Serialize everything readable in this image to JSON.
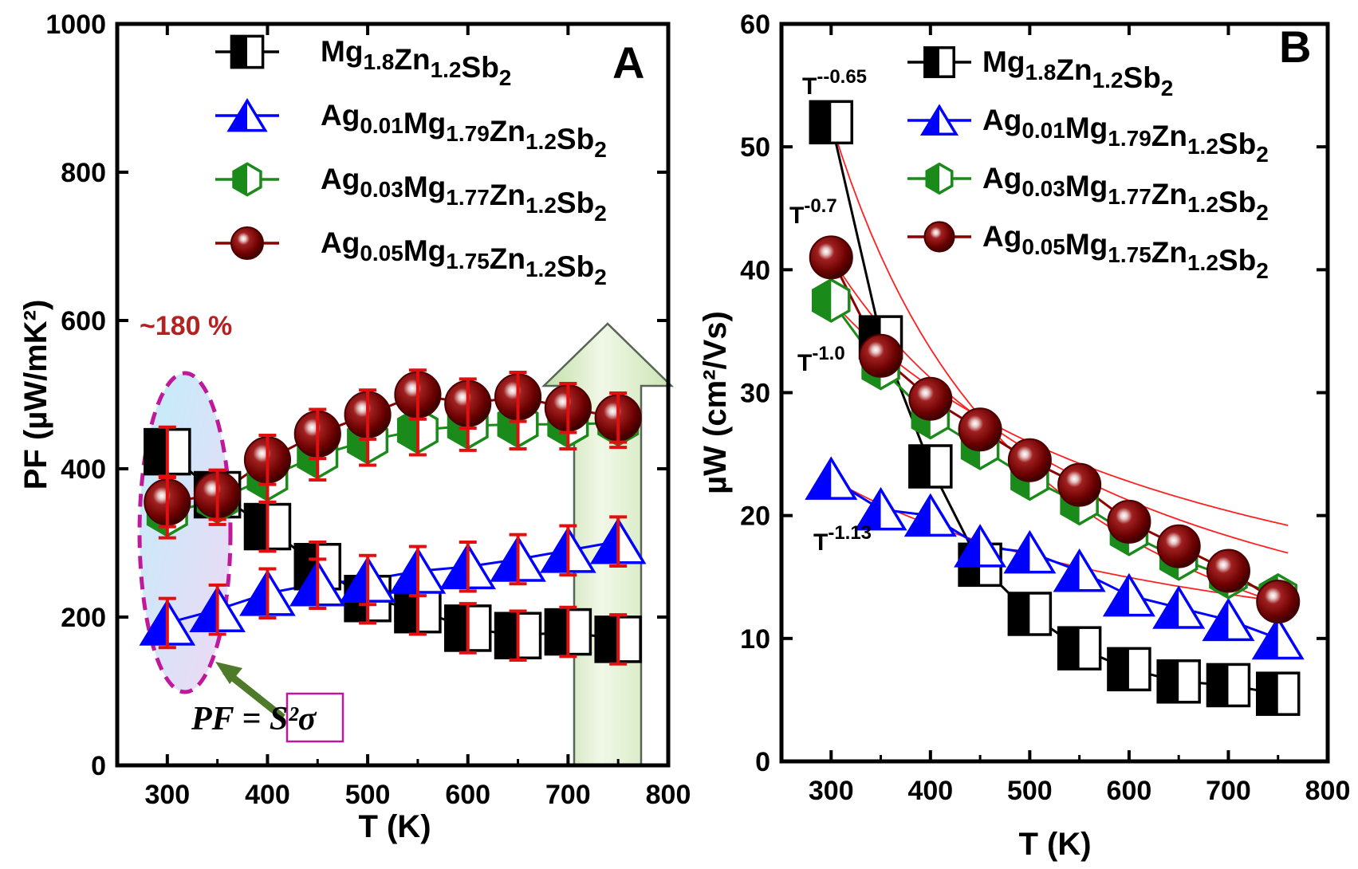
{
  "chart_data": [
    {
      "type": "line",
      "panel": "A",
      "xlabel": "T (K)",
      "ylabel": "PF (µW/mK²)",
      "xlim": [
        250,
        800
      ],
      "ylim": [
        0,
        1000
      ],
      "xticks": [
        "300",
        "400",
        "500",
        "600",
        "700",
        "800"
      ],
      "yticks": [
        "0",
        "200",
        "400",
        "600",
        "800",
        "1000"
      ],
      "x": [
        300,
        350,
        400,
        450,
        500,
        550,
        600,
        650,
        700,
        750
      ],
      "series": [
        {
          "name": "Mg1.8Zn1.2Sb2",
          "color": "#000000",
          "marker": "half-filled-square",
          "values": [
            423,
            365,
            322,
            268,
            225,
            210,
            185,
            175,
            180,
            170
          ]
        },
        {
          "name": "Ag0.01Mg1.79Zn1.2Sb2",
          "color": "#0000ff",
          "marker": "half-filled-triangle",
          "values": [
            192,
            210,
            232,
            245,
            250,
            262,
            268,
            278,
            290,
            302
          ]
        },
        {
          "name": "Ag0.03Mg1.77Zn1.2Sb2",
          "color": "#1a8a1a",
          "marker": "half-filled-hexagon",
          "values": [
            340,
            358,
            388,
            418,
            438,
            452,
            458,
            460,
            460,
            462
          ]
        },
        {
          "name": "Ag0.05Mg1.75Zn1.2Sb2",
          "color": "#8b0000",
          "marker": "sphere",
          "values": [
            355,
            365,
            412,
            447,
            473,
            500,
            488,
            497,
            482,
            469
          ]
        }
      ],
      "legend": [
        {
          "base": "Mg",
          "parts": [
            [
              "Mg",
              "1.8"
            ],
            [
              "Zn",
              "1.2"
            ],
            [
              "Sb",
              "2"
            ]
          ]
        },
        {
          "parts": [
            [
              "Ag",
              "0.01"
            ],
            [
              "Mg",
              "1.79"
            ],
            [
              "Zn",
              "1.2"
            ],
            [
              "Sb",
              "2"
            ]
          ]
        },
        {
          "parts": [
            [
              "Ag",
              "0.03"
            ],
            [
              "Mg",
              "1.77"
            ],
            [
              "Zn",
              "1.2"
            ],
            [
              "Sb",
              "2"
            ]
          ]
        },
        {
          "parts": [
            [
              "Ag",
              "0.05"
            ],
            [
              "Mg",
              "1.75"
            ],
            [
              "Zn",
              "1.2"
            ],
            [
              "Sb",
              "2"
            ]
          ]
        }
      ],
      "legend_placement": "top-right",
      "annotations": {
        "percent": "~180 %",
        "formula_left": "PF = ",
        "formula_boxed": "S²",
        "formula_right": "σ",
        "panel_letter": "A"
      }
    },
    {
      "type": "line",
      "panel": "B",
      "xlabel": "T (K)",
      "ylabel": "µW (cm²/Vs)",
      "xlim": [
        250,
        800
      ],
      "ylim": [
        0,
        60
      ],
      "xticks": [
        "300",
        "400",
        "500",
        "600",
        "700",
        "800"
      ],
      "yticks": [
        "0",
        "10",
        "20",
        "30",
        "40",
        "50",
        "60"
      ],
      "x": [
        300,
        350,
        400,
        450,
        500,
        550,
        600,
        650,
        700,
        750
      ],
      "series": [
        {
          "name": "Mg1.8Zn1.2Sb2",
          "color": "#000000",
          "marker": "half-filled-square",
          "values": [
            52,
            34.5,
            24,
            16,
            12,
            9.2,
            7.5,
            6.5,
            6.2,
            5.5
          ]
        },
        {
          "name": "Ag0.01Mg1.79Zn1.2Sb2",
          "color": "#0000ff",
          "marker": "half-filled-triangle",
          "values": [
            23,
            20.5,
            20,
            17.5,
            17,
            15.5,
            13.5,
            12.5,
            11.5,
            10
          ]
        },
        {
          "name": "Ag0.03Mg1.77Zn1.2Sb2",
          "color": "#1a8a1a",
          "marker": "half-filled-hexagon",
          "values": [
            37.5,
            32,
            28,
            25.5,
            23,
            21,
            18.5,
            16.5,
            15,
            13.5
          ]
        },
        {
          "name": "Ag0.05Mg1.75Zn1.2Sb2",
          "color": "#8b0000",
          "marker": "sphere",
          "values": [
            41,
            33,
            29.5,
            27,
            24.5,
            22.5,
            19.5,
            17.5,
            15.5,
            13
          ]
        }
      ],
      "legend": [
        {
          "parts": [
            [
              "Mg",
              "1.8"
            ],
            [
              "Zn",
              "1.2"
            ],
            [
              "Sb",
              "2"
            ]
          ]
        },
        {
          "parts": [
            [
              "Ag",
              "0.01"
            ],
            [
              "Mg",
              "1.79"
            ],
            [
              "Zn",
              "1.2"
            ],
            [
              "Sb",
              "2"
            ]
          ]
        },
        {
          "parts": [
            [
              "Ag",
              "0.03"
            ],
            [
              "Mg",
              "1.77"
            ],
            [
              "Zn",
              "1.2"
            ],
            [
              "Sb",
              "2"
            ]
          ]
        },
        {
          "parts": [
            [
              "Ag",
              "0.05"
            ],
            [
              "Mg",
              "1.75"
            ],
            [
              "Zn",
              "1.2"
            ],
            [
              "Sb",
              "2"
            ]
          ]
        }
      ],
      "legend_placement": "top-right",
      "fit_exponents": [
        "--0.65",
        "-0.7",
        "-1.0",
        "-1.13"
      ],
      "annotations": {
        "fit_base": "T",
        "panel_letter": "B"
      }
    }
  ]
}
